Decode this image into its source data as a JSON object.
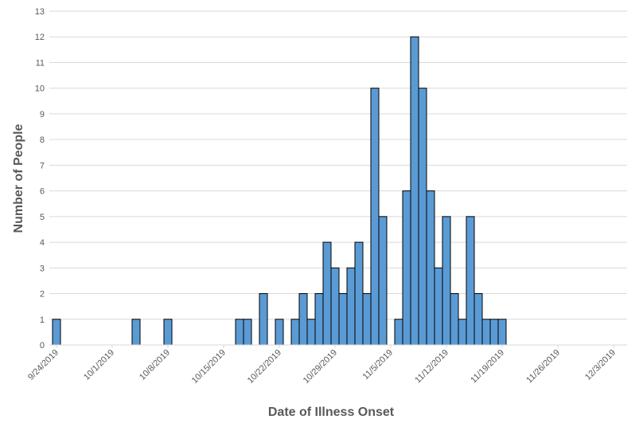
{
  "chart_data": {
    "type": "bar",
    "title": "",
    "xlabel": "Date of Illness Onset",
    "ylabel": "Number of People",
    "ylim": [
      0,
      13
    ],
    "y_ticks": [
      0,
      1,
      2,
      3,
      4,
      5,
      6,
      7,
      8,
      9,
      10,
      11,
      12,
      13
    ],
    "x_tick_labels": [
      "9/24/2019",
      "10/1/2019",
      "10/8/2019",
      "10/15/2019",
      "10/22/2019",
      "10/29/2019",
      "11/5/2019",
      "11/12/2019",
      "11/19/2019",
      "11/26/2019",
      "12/3/2019"
    ],
    "xlim": [
      "9/24/2019",
      "12/3/2019"
    ],
    "grid": true,
    "bar_color": "#5b9bd5",
    "bar_edge_color": "#000000",
    "series": [
      {
        "x": [
          "9/24/2019",
          "10/4/2019",
          "10/8/2019",
          "10/17/2019",
          "10/18/2019",
          "10/20/2019",
          "10/22/2019",
          "10/24/2019",
          "10/25/2019",
          "10/26/2019",
          "10/27/2019",
          "10/28/2019",
          "10/29/2019",
          "10/30/2019",
          "10/31/2019",
          "11/1/2019",
          "11/2/2019",
          "11/3/2019",
          "11/4/2019",
          "11/6/2019",
          "11/7/2019",
          "11/8/2019",
          "11/9/2019",
          "11/10/2019",
          "11/11/2019",
          "11/12/2019",
          "11/13/2019",
          "11/14/2019",
          "11/15/2019",
          "11/16/2019",
          "11/17/2019",
          "11/18/2019",
          "11/19/2019"
        ],
        "values": [
          1,
          1,
          1,
          1,
          1,
          2,
          1,
          1,
          2,
          1,
          2,
          4,
          3,
          2,
          3,
          4,
          2,
          10,
          5,
          1,
          6,
          12,
          10,
          6,
          3,
          5,
          2,
          1,
          5,
          2,
          1,
          1,
          1
        ]
      }
    ]
  }
}
